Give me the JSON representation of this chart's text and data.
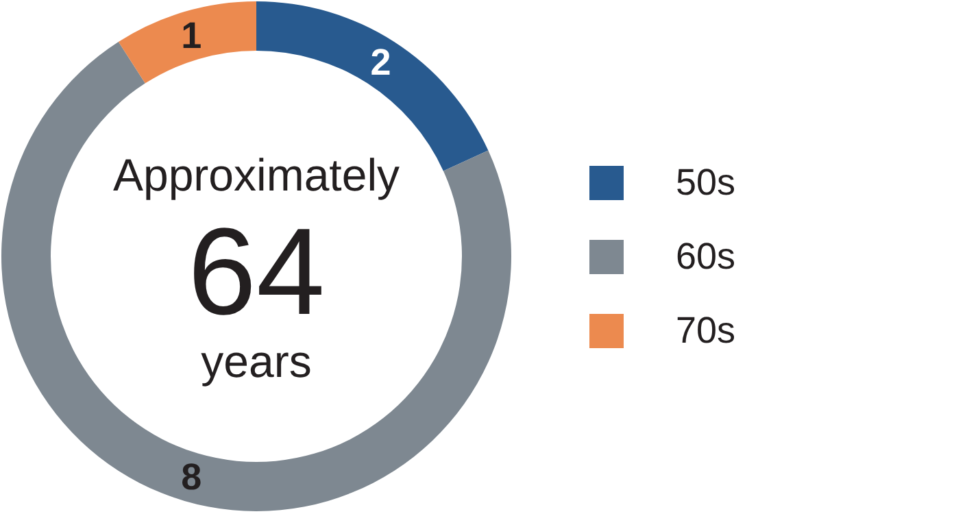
{
  "chart_data": {
    "type": "donut",
    "categories": [
      "50s",
      "60s",
      "70s"
    ],
    "values": [
      2,
      8,
      1
    ],
    "colors": [
      "#285a8f",
      "#7e8891",
      "#ec8a4f"
    ],
    "data_labels": true,
    "legend": "right",
    "annotations": [
      "Approximately",
      "64",
      "years"
    ]
  }
}
